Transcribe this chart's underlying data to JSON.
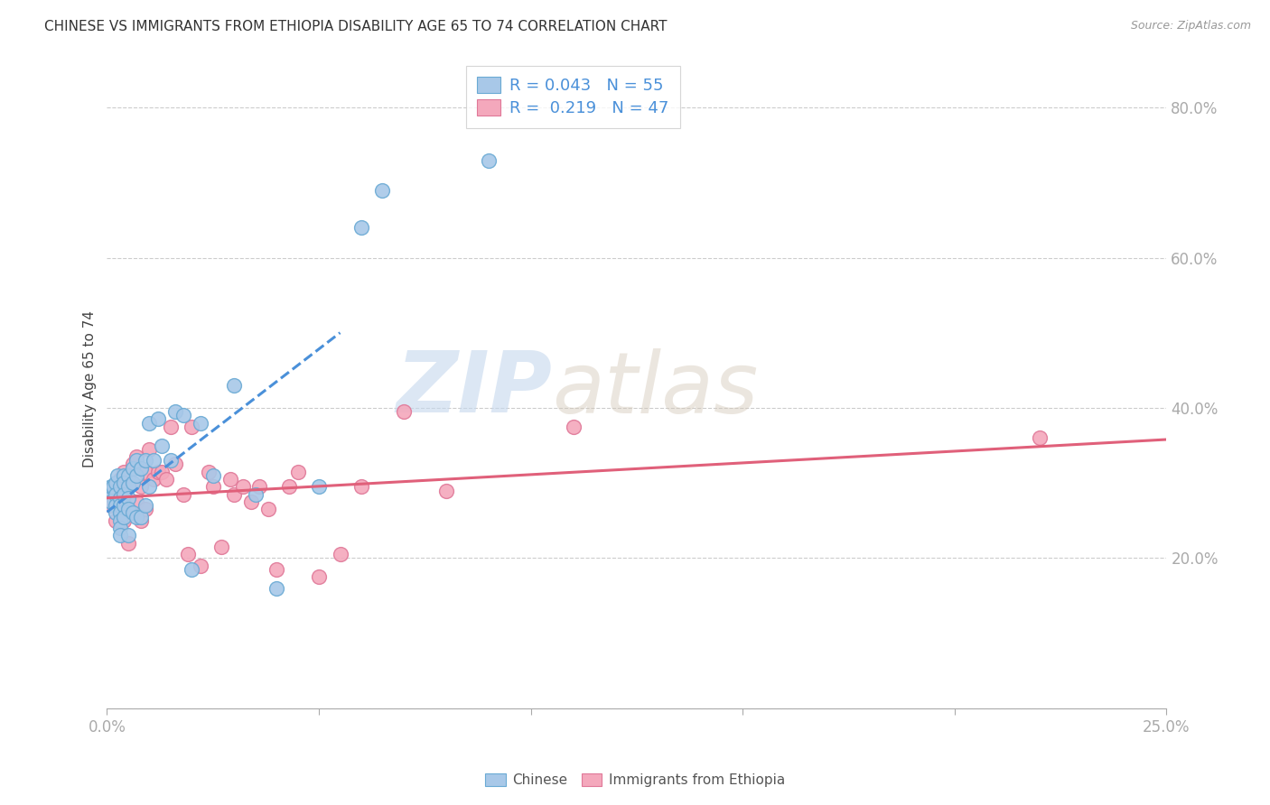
{
  "title": "CHINESE VS IMMIGRANTS FROM ETHIOPIA DISABILITY AGE 65 TO 74 CORRELATION CHART",
  "source": "Source: ZipAtlas.com",
  "ylabel_label": "Disability Age 65 to 74",
  "xlim": [
    0.0,
    0.25
  ],
  "ylim": [
    0.0,
    0.85
  ],
  "xticks": [
    0.0,
    0.05,
    0.1,
    0.15,
    0.2,
    0.25
  ],
  "yticks": [
    0.0,
    0.2,
    0.4,
    0.6,
    0.8
  ],
  "legend_R_chinese": "0.043",
  "legend_N_chinese": "55",
  "legend_R_ethiopia": "0.219",
  "legend_N_ethiopia": "47",
  "chinese_color": "#a8c8e8",
  "ethiopia_color": "#f4a8bc",
  "chinese_edge": "#6aaad4",
  "ethiopia_edge": "#e07898",
  "trend_chinese_color": "#4a90d9",
  "trend_ethiopia_color": "#e0607a",
  "watermark_zip": "ZIP",
  "watermark_atlas": "atlas",
  "grid_color": "#cccccc",
  "chinese_x": [
    0.0005,
    0.001,
    0.001,
    0.001,
    0.0015,
    0.002,
    0.002,
    0.002,
    0.002,
    0.0025,
    0.003,
    0.003,
    0.003,
    0.003,
    0.003,
    0.003,
    0.003,
    0.004,
    0.004,
    0.004,
    0.004,
    0.004,
    0.005,
    0.005,
    0.005,
    0.005,
    0.005,
    0.006,
    0.006,
    0.006,
    0.007,
    0.007,
    0.007,
    0.008,
    0.008,
    0.009,
    0.009,
    0.01,
    0.01,
    0.011,
    0.012,
    0.013,
    0.015,
    0.016,
    0.018,
    0.02,
    0.022,
    0.025,
    0.03,
    0.035,
    0.04,
    0.05,
    0.06,
    0.065,
    0.09
  ],
  "chinese_y": [
    0.285,
    0.29,
    0.295,
    0.275,
    0.295,
    0.3,
    0.285,
    0.27,
    0.26,
    0.31,
    0.295,
    0.28,
    0.27,
    0.26,
    0.25,
    0.24,
    0.23,
    0.31,
    0.3,
    0.285,
    0.27,
    0.255,
    0.31,
    0.295,
    0.28,
    0.265,
    0.23,
    0.32,
    0.3,
    0.26,
    0.33,
    0.31,
    0.255,
    0.32,
    0.255,
    0.33,
    0.27,
    0.38,
    0.295,
    0.33,
    0.385,
    0.35,
    0.33,
    0.395,
    0.39,
    0.185,
    0.38,
    0.31,
    0.43,
    0.285,
    0.16,
    0.295,
    0.64,
    0.69,
    0.73
  ],
  "ethiopia_x": [
    0.001,
    0.002,
    0.002,
    0.003,
    0.003,
    0.004,
    0.004,
    0.005,
    0.005,
    0.006,
    0.006,
    0.007,
    0.007,
    0.008,
    0.008,
    0.009,
    0.009,
    0.01,
    0.011,
    0.012,
    0.013,
    0.014,
    0.015,
    0.016,
    0.018,
    0.019,
    0.02,
    0.022,
    0.024,
    0.025,
    0.027,
    0.029,
    0.03,
    0.032,
    0.034,
    0.036,
    0.038,
    0.04,
    0.043,
    0.045,
    0.05,
    0.055,
    0.06,
    0.07,
    0.08,
    0.11,
    0.22
  ],
  "ethiopia_y": [
    0.27,
    0.295,
    0.25,
    0.305,
    0.275,
    0.315,
    0.25,
    0.295,
    0.22,
    0.325,
    0.26,
    0.335,
    0.275,
    0.295,
    0.25,
    0.315,
    0.265,
    0.345,
    0.305,
    0.315,
    0.315,
    0.305,
    0.375,
    0.325,
    0.285,
    0.205,
    0.375,
    0.19,
    0.315,
    0.295,
    0.215,
    0.305,
    0.285,
    0.295,
    0.275,
    0.295,
    0.265,
    0.185,
    0.295,
    0.315,
    0.175,
    0.205,
    0.295,
    0.395,
    0.29,
    0.375,
    0.36
  ],
  "chinese_trend_x": [
    0.0,
    0.055
  ],
  "ethiopia_trend_x": [
    0.0,
    0.25
  ]
}
